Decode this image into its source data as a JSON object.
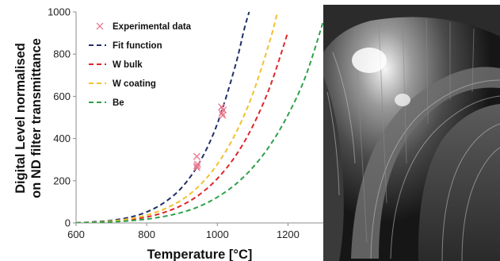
{
  "chart_data": {
    "type": "line",
    "xlabel": "Temperature [°C]",
    "ylabel_lines": [
      "Digital Level normalised",
      "on ND filter transmittance"
    ],
    "xlim": [
      600,
      1300
    ],
    "ylim": [
      0,
      1000
    ],
    "xticks": [
      600,
      800,
      1000,
      1200
    ],
    "yticks": [
      0,
      200,
      400,
      600,
      800,
      1000
    ],
    "grid": false,
    "legend_position": "top-left",
    "series": [
      {
        "name": "Experimental data",
        "kind": "scatter",
        "marker": "x",
        "color": "#e87a90",
        "points": [
          [
            942,
            315
          ],
          [
            942,
            270
          ],
          [
            942,
            262
          ],
          [
            944,
            278
          ],
          [
            1012,
            550
          ],
          [
            1013,
            520
          ],
          [
            1015,
            510
          ],
          [
            1017,
            535
          ]
        ]
      },
      {
        "name": "Fit function",
        "kind": "line",
        "dash": true,
        "color": "#1f2f66",
        "x": [
          600,
          650,
          700,
          750,
          800,
          850,
          900,
          950,
          1000,
          1050,
          1075,
          1090
        ],
        "y": [
          0,
          5,
          12,
          26,
          52,
          97,
          169,
          288,
          470,
          739,
          911,
          1000
        ]
      },
      {
        "name": "W bulk",
        "kind": "line",
        "dash": true,
        "color": "#e0262b",
        "x": [
          600,
          650,
          700,
          750,
          800,
          850,
          900,
          950,
          1000,
          1050,
          1100,
          1150,
          1200
        ],
        "y": [
          0,
          3,
          7,
          15,
          28,
          50,
          84,
          135,
          210,
          314,
          458,
          650,
          905
        ]
      },
      {
        "name": "W coating",
        "kind": "line",
        "dash": true,
        "color": "#f2c12e",
        "x": [
          600,
          650,
          700,
          750,
          800,
          850,
          900,
          950,
          1000,
          1050,
          1100,
          1150,
          1170
        ],
        "y": [
          0,
          3,
          9,
          19,
          37,
          66,
          110,
          178,
          278,
          418,
          610,
          870,
          1000
        ]
      },
      {
        "name": "Be",
        "kind": "line",
        "dash": true,
        "color": "#2ea24a",
        "x": [
          600,
          650,
          700,
          750,
          800,
          850,
          900,
          950,
          1000,
          1050,
          1100,
          1150,
          1200,
          1250,
          1300
        ],
        "y": [
          0,
          2,
          5,
          10,
          18,
          31,
          50,
          79,
          122,
          181,
          262,
          370,
          512,
          695,
          955
        ]
      }
    ]
  },
  "photo": {
    "description_icon": "tokamak-vessel-photo"
  }
}
